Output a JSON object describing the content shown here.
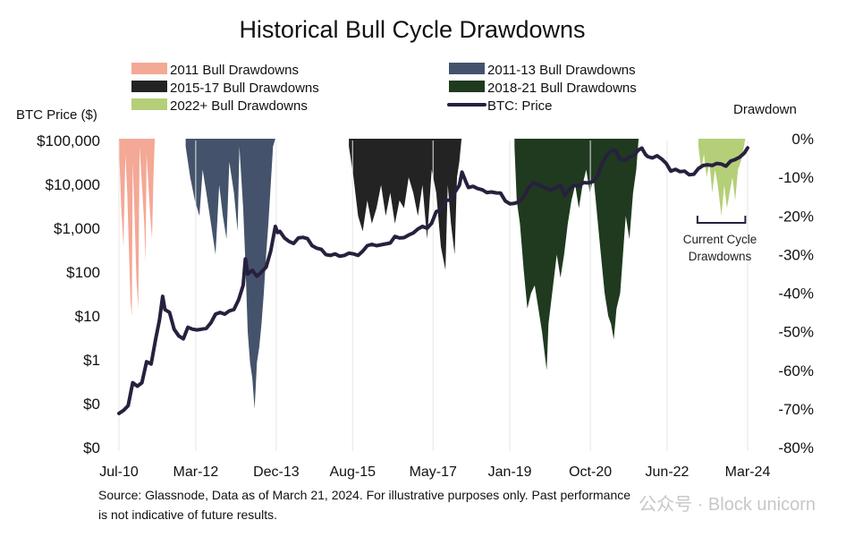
{
  "chart_data": {
    "type": "area",
    "title": "Historical Bull Cycle Drawdowns",
    "ylabel_left": "BTC Price ($)",
    "ylabel_right": "Drawdown",
    "left_axis_scale": "log",
    "left_ticks": [
      "$100,000",
      "$10,000",
      "$1,000",
      "$100",
      "$10",
      "$1",
      "$0",
      "$0"
    ],
    "left_tick_values": [
      100000,
      10000,
      1000,
      100,
      10,
      1,
      0.1,
      0.01
    ],
    "right_ticks": [
      "0%",
      "-10%",
      "-20%",
      "-30%",
      "-40%",
      "-50%",
      "-60%",
      "-70%",
      "-80%"
    ],
    "right_tick_values": [
      0,
      -10,
      -20,
      -30,
      -40,
      -50,
      -60,
      -70,
      -80
    ],
    "right_ylim": [
      -80,
      0
    ],
    "x_ticks": [
      "Jul-10",
      "Mar-12",
      "Dec-13",
      "Aug-15",
      "May-17",
      "Jan-19",
      "Oct-20",
      "Jun-22",
      "Mar-24"
    ],
    "x_tick_values": [
      2010.5,
      2012.17,
      2013.92,
      2015.58,
      2017.33,
      2019.0,
      2020.75,
      2022.42,
      2024.17
    ],
    "x_range": [
      2010.5,
      2024.17
    ],
    "legend": [
      {
        "label": "2011 Bull Drawdowns",
        "color": "#f4a896",
        "kind": "area"
      },
      {
        "label": "2011-13 Bull Drawdowns",
        "color": "#44536b",
        "kind": "area"
      },
      {
        "label": "2015-17 Bull Drawdowns",
        "color": "#232323",
        "kind": "area"
      },
      {
        "label": "2018-21 Bull Drawdowns",
        "color": "#1f3a1f",
        "kind": "area"
      },
      {
        "label": "2022+ Bull Drawdowns",
        "color": "#b4cf78",
        "kind": "area"
      },
      {
        "label": "BTC: Price",
        "color": "#28203e",
        "kind": "line"
      }
    ],
    "drawdown_series": [
      {
        "name": "2011 Bull Drawdowns",
        "color": "#f4a896",
        "start": 2010.5,
        "end": 2011.28,
        "points": [
          [
            2010.5,
            -2
          ],
          [
            2010.55,
            -18
          ],
          [
            2010.6,
            -28
          ],
          [
            2010.64,
            -4
          ],
          [
            2010.68,
            -14
          ],
          [
            2010.72,
            -30
          ],
          [
            2010.75,
            -42
          ],
          [
            2010.78,
            -46
          ],
          [
            2010.8,
            -6
          ],
          [
            2010.84,
            -20
          ],
          [
            2010.88,
            -36
          ],
          [
            2010.92,
            -44
          ],
          [
            2010.95,
            -2
          ],
          [
            2011.0,
            -12
          ],
          [
            2011.05,
            -22
          ],
          [
            2011.08,
            -32
          ],
          [
            2011.1,
            -4
          ],
          [
            2011.14,
            -12
          ],
          [
            2011.18,
            -20
          ],
          [
            2011.22,
            -26
          ],
          [
            2011.25,
            -10
          ],
          [
            2011.28,
            0
          ]
        ]
      },
      {
        "name": "2011-13 Bull Drawdowns",
        "color": "#44536b",
        "start": 2011.95,
        "end": 2013.9,
        "points": [
          [
            2011.95,
            -2
          ],
          [
            2012.05,
            -10
          ],
          [
            2012.15,
            -16
          ],
          [
            2012.25,
            -20
          ],
          [
            2012.32,
            -8
          ],
          [
            2012.4,
            -14
          ],
          [
            2012.5,
            -22
          ],
          [
            2012.6,
            -30
          ],
          [
            2012.68,
            -12
          ],
          [
            2012.76,
            -20
          ],
          [
            2012.84,
            -26
          ],
          [
            2012.9,
            -6
          ],
          [
            2013.0,
            -14
          ],
          [
            2013.08,
            -24
          ],
          [
            2013.12,
            -2
          ],
          [
            2013.2,
            -18
          ],
          [
            2013.25,
            -32
          ],
          [
            2013.3,
            -50
          ],
          [
            2013.35,
            -58
          ],
          [
            2013.4,
            -62
          ],
          [
            2013.45,
            -70
          ],
          [
            2013.5,
            -58
          ],
          [
            2013.55,
            -54
          ],
          [
            2013.6,
            -48
          ],
          [
            2013.65,
            -40
          ],
          [
            2013.7,
            -30
          ],
          [
            2013.75,
            -22
          ],
          [
            2013.8,
            -12
          ],
          [
            2013.85,
            -2
          ],
          [
            2013.9,
            0
          ]
        ]
      },
      {
        "name": "2015-17 Bull Drawdowns",
        "color": "#232323",
        "start": 2015.5,
        "end": 2017.95,
        "points": [
          [
            2015.5,
            -2
          ],
          [
            2015.6,
            -10
          ],
          [
            2015.7,
            -20
          ],
          [
            2015.8,
            -24
          ],
          [
            2015.9,
            -16
          ],
          [
            2016.0,
            -22
          ],
          [
            2016.1,
            -18
          ],
          [
            2016.2,
            -12
          ],
          [
            2016.3,
            -20
          ],
          [
            2016.4,
            -14
          ],
          [
            2016.5,
            -22
          ],
          [
            2016.6,
            -16
          ],
          [
            2016.7,
            -18
          ],
          [
            2016.8,
            -10
          ],
          [
            2016.9,
            -14
          ],
          [
            2017.0,
            -20
          ],
          [
            2017.1,
            -12
          ],
          [
            2017.2,
            -26
          ],
          [
            2017.3,
            -8
          ],
          [
            2017.4,
            -14
          ],
          [
            2017.5,
            -28
          ],
          [
            2017.6,
            -34
          ],
          [
            2017.65,
            -12
          ],
          [
            2017.72,
            -22
          ],
          [
            2017.8,
            -30
          ],
          [
            2017.85,
            -10
          ],
          [
            2017.9,
            -6
          ],
          [
            2017.95,
            0
          ]
        ]
      },
      {
        "name": "2018-21 Bull Drawdowns",
        "color": "#1f3a1f",
        "start": 2019.1,
        "end": 2021.8,
        "points": [
          [
            2019.1,
            -2
          ],
          [
            2019.15,
            -16
          ],
          [
            2019.22,
            -22
          ],
          [
            2019.3,
            -34
          ],
          [
            2019.38,
            -44
          ],
          [
            2019.46,
            -40
          ],
          [
            2019.54,
            -38
          ],
          [
            2019.62,
            -44
          ],
          [
            2019.7,
            -50
          ],
          [
            2019.76,
            -56
          ],
          [
            2019.8,
            -60
          ],
          [
            2019.84,
            -48
          ],
          [
            2019.9,
            -42
          ],
          [
            2019.96,
            -36
          ],
          [
            2020.02,
            -30
          ],
          [
            2020.1,
            -36
          ],
          [
            2020.18,
            -30
          ],
          [
            2020.26,
            -22
          ],
          [
            2020.34,
            -16
          ],
          [
            2020.42,
            -12
          ],
          [
            2020.5,
            -18
          ],
          [
            2020.58,
            -12
          ],
          [
            2020.66,
            -8
          ],
          [
            2020.74,
            -14
          ],
          [
            2020.82,
            -10
          ],
          [
            2020.9,
            -20
          ],
          [
            2020.98,
            -30
          ],
          [
            2021.06,
            -40
          ],
          [
            2021.14,
            -46
          ],
          [
            2021.2,
            -48
          ],
          [
            2021.26,
            -52
          ],
          [
            2021.32,
            -44
          ],
          [
            2021.4,
            -40
          ],
          [
            2021.46,
            -30
          ],
          [
            2021.52,
            -20
          ],
          [
            2021.6,
            -26
          ],
          [
            2021.68,
            -14
          ],
          [
            2021.75,
            -8
          ],
          [
            2021.8,
            0
          ]
        ]
      },
      {
        "name": "2022+ Bull Drawdowns",
        "color": "#b4cf78",
        "start": 2023.1,
        "end": 2024.12,
        "points": [
          [
            2023.1,
            -2
          ],
          [
            2023.16,
            -8
          ],
          [
            2023.22,
            -4
          ],
          [
            2023.28,
            -10
          ],
          [
            2023.34,
            -6
          ],
          [
            2023.4,
            -14
          ],
          [
            2023.46,
            -8
          ],
          [
            2023.52,
            -12
          ],
          [
            2023.56,
            -16
          ],
          [
            2023.6,
            -20
          ],
          [
            2023.66,
            -12
          ],
          [
            2023.72,
            -18
          ],
          [
            2023.78,
            -14
          ],
          [
            2023.84,
            -10
          ],
          [
            2023.9,
            -16
          ],
          [
            2023.96,
            -8
          ],
          [
            2024.02,
            -6
          ],
          [
            2024.06,
            -4
          ],
          [
            2024.12,
            0
          ]
        ]
      }
    ],
    "price_series": {
      "name": "BTC: Price",
      "color": "#28203e",
      "points": [
        [
          2010.5,
          0.06
        ],
        [
          2010.6,
          0.07
        ],
        [
          2010.7,
          0.09
        ],
        [
          2010.8,
          0.3
        ],
        [
          2010.9,
          0.25
        ],
        [
          2011.0,
          0.3
        ],
        [
          2011.1,
          0.9
        ],
        [
          2011.2,
          0.8
        ],
        [
          2011.3,
          3
        ],
        [
          2011.38,
          8
        ],
        [
          2011.45,
          28
        ],
        [
          2011.5,
          14
        ],
        [
          2011.6,
          12
        ],
        [
          2011.7,
          5
        ],
        [
          2011.8,
          3.5
        ],
        [
          2011.9,
          3
        ],
        [
          2012.0,
          5.5
        ],
        [
          2012.1,
          5
        ],
        [
          2012.2,
          4.8
        ],
        [
          2012.3,
          5
        ],
        [
          2012.4,
          5.2
        ],
        [
          2012.5,
          7
        ],
        [
          2012.6,
          11
        ],
        [
          2012.7,
          12
        ],
        [
          2012.8,
          11
        ],
        [
          2012.9,
          13
        ],
        [
          2013.0,
          14
        ],
        [
          2013.1,
          23
        ],
        [
          2013.2,
          50
        ],
        [
          2013.25,
          200
        ],
        [
          2013.3,
          90
        ],
        [
          2013.4,
          110
        ],
        [
          2013.5,
          80
        ],
        [
          2013.6,
          100
        ],
        [
          2013.7,
          130
        ],
        [
          2013.8,
          300
        ],
        [
          2013.9,
          1100
        ],
        [
          2013.95,
          800
        ],
        [
          2014.0,
          850
        ],
        [
          2014.1,
          600
        ],
        [
          2014.2,
          500
        ],
        [
          2014.3,
          450
        ],
        [
          2014.4,
          600
        ],
        [
          2014.5,
          620
        ],
        [
          2014.6,
          580
        ],
        [
          2014.7,
          400
        ],
        [
          2014.8,
          350
        ],
        [
          2014.9,
          330
        ],
        [
          2015.0,
          250
        ],
        [
          2015.1,
          240
        ],
        [
          2015.2,
          260
        ],
        [
          2015.3,
          230
        ],
        [
          2015.4,
          240
        ],
        [
          2015.5,
          270
        ],
        [
          2015.6,
          260
        ],
        [
          2015.7,
          240
        ],
        [
          2015.8,
          300
        ],
        [
          2015.9,
          400
        ],
        [
          2016.0,
          430
        ],
        [
          2016.1,
          400
        ],
        [
          2016.2,
          420
        ],
        [
          2016.3,
          440
        ],
        [
          2016.4,
          460
        ],
        [
          2016.5,
          650
        ],
        [
          2016.6,
          600
        ],
        [
          2016.7,
          610
        ],
        [
          2016.8,
          700
        ],
        [
          2016.9,
          780
        ],
        [
          2017.0,
          960
        ],
        [
          2017.1,
          1100
        ],
        [
          2017.2,
          1000
        ],
        [
          2017.3,
          1300
        ],
        [
          2017.4,
          2400
        ],
        [
          2017.5,
          2600
        ],
        [
          2017.6,
          4300
        ],
        [
          2017.7,
          4400
        ],
        [
          2017.8,
          6500
        ],
        [
          2017.9,
          9500
        ],
        [
          2017.96,
          19000
        ],
        [
          2018.05,
          11000
        ],
        [
          2018.1,
          8500
        ],
        [
          2018.2,
          9000
        ],
        [
          2018.3,
          8000
        ],
        [
          2018.4,
          7500
        ],
        [
          2018.5,
          6500
        ],
        [
          2018.6,
          6700
        ],
        [
          2018.7,
          6400
        ],
        [
          2018.8,
          6300
        ],
        [
          2018.9,
          4200
        ],
        [
          2019.0,
          3600
        ],
        [
          2019.1,
          3700
        ],
        [
          2019.2,
          4000
        ],
        [
          2019.3,
          5200
        ],
        [
          2019.4,
          8000
        ],
        [
          2019.5,
          11000
        ],
        [
          2019.6,
          10000
        ],
        [
          2019.7,
          9000
        ],
        [
          2019.8,
          8000
        ],
        [
          2019.9,
          7300
        ],
        [
          2020.0,
          8500
        ],
        [
          2020.1,
          9500
        ],
        [
          2020.2,
          5500
        ],
        [
          2020.3,
          8000
        ],
        [
          2020.4,
          9500
        ],
        [
          2020.5,
          9200
        ],
        [
          2020.6,
          11000
        ],
        [
          2020.7,
          10800
        ],
        [
          2020.8,
          11500
        ],
        [
          2020.9,
          15000
        ],
        [
          2021.0,
          29000
        ],
        [
          2021.1,
          45000
        ],
        [
          2021.2,
          58000
        ],
        [
          2021.3,
          60000
        ],
        [
          2021.4,
          37000
        ],
        [
          2021.5,
          35000
        ],
        [
          2021.6,
          42000
        ],
        [
          2021.7,
          47000
        ],
        [
          2021.8,
          61000
        ],
        [
          2021.87,
          67000
        ],
        [
          2021.95,
          48000
        ],
        [
          2022.0,
          43000
        ],
        [
          2022.1,
          40000
        ],
        [
          2022.2,
          45000
        ],
        [
          2022.3,
          38000
        ],
        [
          2022.4,
          30000
        ],
        [
          2022.5,
          20000
        ],
        [
          2022.6,
          22000
        ],
        [
          2022.7,
          19500
        ],
        [
          2022.8,
          20000
        ],
        [
          2022.9,
          16500
        ],
        [
          2023.0,
          17000
        ],
        [
          2023.1,
          23000
        ],
        [
          2023.2,
          27000
        ],
        [
          2023.3,
          28000
        ],
        [
          2023.4,
          27000
        ],
        [
          2023.5,
          30000
        ],
        [
          2023.6,
          29000
        ],
        [
          2023.7,
          26000
        ],
        [
          2023.8,
          34000
        ],
        [
          2023.9,
          37000
        ],
        [
          2024.0,
          42000
        ],
        [
          2024.1,
          52000
        ],
        [
          2024.17,
          68000
        ]
      ]
    },
    "annotation": {
      "text_line1": "Current Cycle",
      "text_line2": "Drawdowns",
      "x_start": 2023.08,
      "x_end": 2024.12
    }
  },
  "footnote": {
    "line1": "Source: Glassnode, Data as of March 21, 2024. For illustrative purposes only. Past performance",
    "line2": "is not indicative of future results."
  },
  "watermark": {
    "text": "公众号 · Block unicorn"
  }
}
